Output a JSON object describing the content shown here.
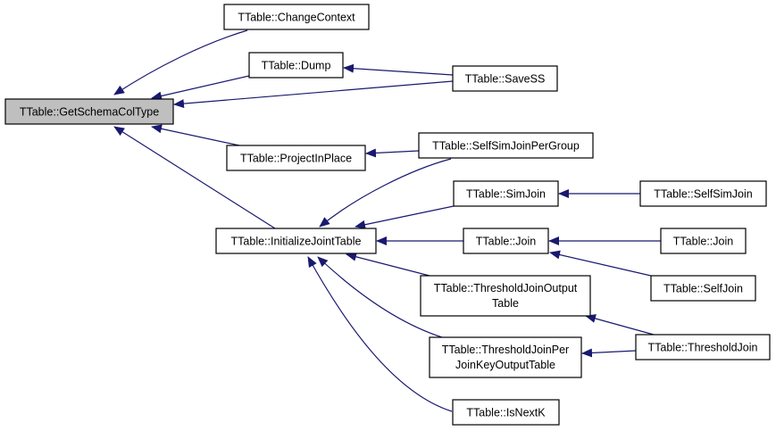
{
  "colors": {
    "edge": "#191970",
    "root_fill": "#bfbfbf",
    "node_fill": "#ffffff"
  },
  "nodes": {
    "get_schema_col_type": "TTable::GetSchemaColType",
    "change_context": "TTable::ChangeContext",
    "dump": "TTable::Dump",
    "project_in_place": "TTable::ProjectInPlace",
    "initialize_joint_table": "TTable::InitializeJointTable",
    "save_ss": "TTable::SaveSS",
    "self_sim_join_per_group": "TTable::SelfSimJoinPerGroup",
    "sim_join": "TTable::SimJoin",
    "join": "TTable::Join",
    "threshold_join_output_table": [
      "TTable::ThresholdJoinOutput",
      "Table"
    ],
    "threshold_join_per_join_key_output_table": [
      "TTable::ThresholdJoinPer",
      "JoinKeyOutputTable"
    ],
    "is_next_k": "TTable::IsNextK",
    "self_sim_join": "TTable::SelfSimJoin",
    "join_2": "TTable::Join",
    "self_join": "TTable::SelfJoin",
    "threshold_join": "TTable::ThresholdJoin"
  }
}
